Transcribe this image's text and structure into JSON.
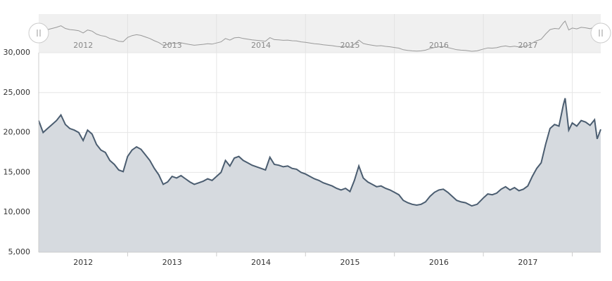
{
  "chart_data": {
    "type": "area",
    "x": [
      2012.0,
      2012.05,
      2012.1,
      2012.15,
      2012.2,
      2012.25,
      2012.3,
      2012.35,
      2012.4,
      2012.45,
      2012.5,
      2012.55,
      2012.6,
      2012.65,
      2012.7,
      2012.75,
      2012.8,
      2012.85,
      2012.9,
      2012.95,
      2013.0,
      2013.05,
      2013.1,
      2013.15,
      2013.2,
      2013.25,
      2013.3,
      2013.35,
      2013.4,
      2013.45,
      2013.5,
      2013.55,
      2013.6,
      2013.65,
      2013.7,
      2013.75,
      2013.8,
      2013.85,
      2013.9,
      2013.95,
      2014.0,
      2014.05,
      2014.1,
      2014.15,
      2014.2,
      2014.25,
      2014.3,
      2014.35,
      2014.4,
      2014.45,
      2014.5,
      2014.55,
      2014.6,
      2014.65,
      2014.7,
      2014.75,
      2014.8,
      2014.85,
      2014.9,
      2014.95,
      2015.0,
      2015.05,
      2015.1,
      2015.15,
      2015.2,
      2015.25,
      2015.3,
      2015.35,
      2015.4,
      2015.45,
      2015.5,
      2015.55,
      2015.6,
      2015.65,
      2015.7,
      2015.75,
      2015.8,
      2015.85,
      2015.9,
      2015.95,
      2016.0,
      2016.05,
      2016.1,
      2016.15,
      2016.2,
      2016.25,
      2016.3,
      2016.35,
      2016.4,
      2016.45,
      2016.5,
      2016.55,
      2016.6,
      2016.65,
      2016.7,
      2016.75,
      2016.8,
      2016.87,
      2016.93,
      2017.0,
      2017.05,
      2017.1,
      2017.15,
      2017.2,
      2017.25,
      2017.3,
      2017.35,
      2017.4,
      2017.45,
      2017.5,
      2017.55,
      2017.6,
      2017.65,
      2017.7,
      2017.75,
      2017.8,
      2017.85,
      2017.9,
      2017.92,
      2017.96,
      2018.0,
      2018.05,
      2018.1,
      2018.15,
      2018.2,
      2018.25,
      2018.28,
      2018.32
    ],
    "values": [
      21500,
      20000,
      20500,
      21000,
      21500,
      22200,
      21000,
      20500,
      20300,
      20000,
      19000,
      20300,
      19800,
      18500,
      17800,
      17500,
      16500,
      16000,
      15300,
      15100,
      17000,
      17800,
      18200,
      17900,
      17200,
      16500,
      15500,
      14700,
      13500,
      13800,
      14500,
      14300,
      14600,
      14200,
      13800,
      13500,
      13700,
      13900,
      14200,
      14000,
      14500,
      15000,
      16500,
      15800,
      16800,
      17000,
      16500,
      16200,
      15900,
      15700,
      15500,
      15300,
      16900,
      16000,
      15900,
      15700,
      15800,
      15500,
      15400,
      15000,
      14800,
      14500,
      14200,
      14000,
      13700,
      13500,
      13300,
      13000,
      12800,
      13000,
      12600,
      14000,
      15800,
      14300,
      13800,
      13500,
      13200,
      13300,
      13000,
      12800,
      12500,
      12200,
      11500,
      11200,
      11000,
      10900,
      11000,
      11300,
      12000,
      12500,
      12800,
      12900,
      12500,
      12000,
      11500,
      11300,
      11200,
      10800,
      11000,
      11800,
      12300,
      12200,
      12400,
      12900,
      13200,
      12800,
      13100,
      12700,
      12900,
      13300,
      14500,
      15500,
      16200,
      18500,
      20500,
      21000,
      20800,
      23500,
      24300,
      20300,
      21200,
      20800,
      21500,
      21300,
      20900,
      21600,
      19200,
      20400
    ],
    "color": "#4b5d70",
    "fill": "#d6dadf",
    "xlim": [
      2012,
      2018.32
    ],
    "xgrid": [
      2013,
      2014,
      2015,
      2016,
      2017,
      2018
    ],
    "xticks": [
      {
        "value": 2012.5,
        "label": "2012"
      },
      {
        "value": 2013.5,
        "label": "2013"
      },
      {
        "value": 2014.5,
        "label": "2014"
      },
      {
        "value": 2015.5,
        "label": "2015"
      },
      {
        "value": 2016.5,
        "label": "2016"
      },
      {
        "value": 2017.5,
        "label": "2017"
      }
    ],
    "ylim": [
      5000,
      30000
    ],
    "yticks": [
      {
        "value": 5000,
        "label": "5,000"
      },
      {
        "value": 10000,
        "label": "10,000"
      },
      {
        "value": 15000,
        "label": "15,000"
      },
      {
        "value": 20000,
        "label": "20,000"
      },
      {
        "value": 25000,
        "label": "25,000"
      },
      {
        "value": 30000,
        "label": "30,000"
      }
    ],
    "grid": true,
    "navigator": true
  }
}
